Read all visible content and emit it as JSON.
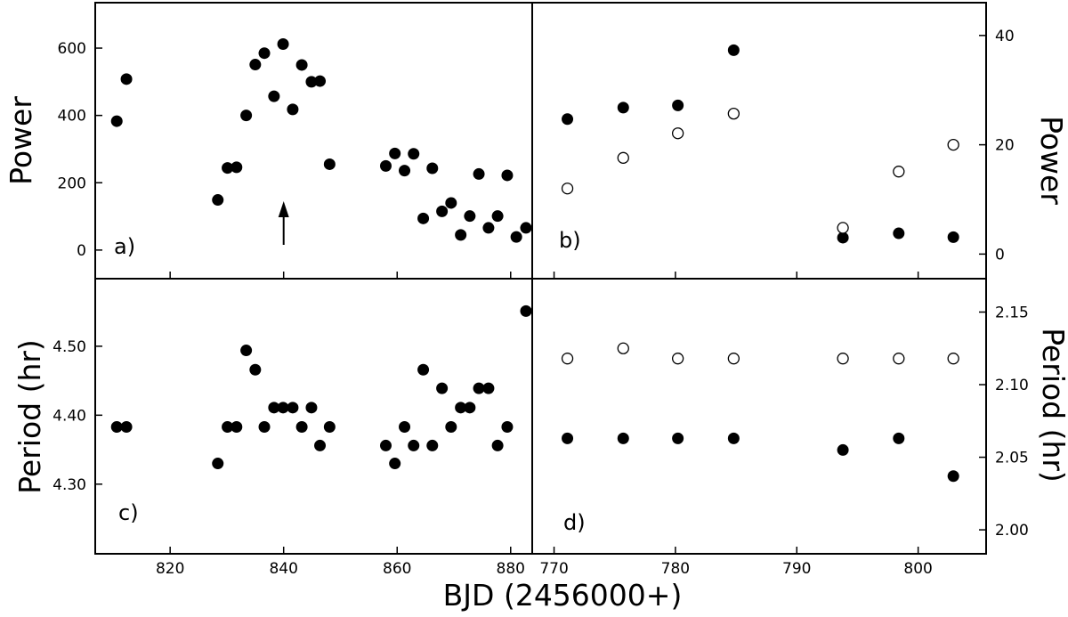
{
  "xlabel": "BJD (2456000+)",
  "chart_data": [
    {
      "panel": "a)",
      "type": "scatter",
      "ylabel": "Power",
      "xlim": [
        806.8,
        883.8
      ],
      "ylim": [
        -85,
        735
      ],
      "xticks": [
        820,
        840,
        860,
        880
      ],
      "yticks": [
        0,
        200,
        400,
        600
      ],
      "arrow_at_x": 840,
      "series": [
        {
          "fill": "filled",
          "points": [
            [
              810.6,
              383
            ],
            [
              812.3,
              508
            ],
            [
              828.4,
              149
            ],
            [
              830.1,
              244
            ],
            [
              831.7,
              246
            ],
            [
              833.4,
              400
            ],
            [
              835.0,
              551
            ],
            [
              836.6,
              585
            ],
            [
              838.3,
              457
            ],
            [
              839.9,
              612
            ],
            [
              841.6,
              418
            ],
            [
              843.2,
              550
            ],
            [
              844.9,
              500
            ],
            [
              846.4,
              502
            ],
            [
              848.1,
              255
            ],
            [
              858.0,
              250
            ],
            [
              859.6,
              287
            ],
            [
              861.3,
              236
            ],
            [
              862.9,
              286
            ],
            [
              864.6,
              94
            ],
            [
              866.2,
              243
            ],
            [
              867.9,
              115
            ],
            [
              869.5,
              140
            ],
            [
              871.2,
              45
            ],
            [
              872.8,
              101
            ],
            [
              874.4,
              226
            ],
            [
              876.1,
              66
            ],
            [
              877.7,
              101
            ],
            [
              879.4,
              222
            ],
            [
              881.0,
              39
            ],
            [
              882.7,
              66
            ]
          ]
        }
      ]
    },
    {
      "panel": "b)",
      "type": "scatter",
      "ylabel": "Power",
      "xlim": [
        768.2,
        805.6
      ],
      "ylim": [
        -4.5,
        46
      ],
      "xticks": [
        770,
        780,
        790,
        800
      ],
      "yticks": [
        0,
        20,
        40
      ],
      "series": [
        {
          "fill": "filled",
          "points": [
            [
              771.1,
              24.7
            ],
            [
              775.7,
              26.8
            ],
            [
              780.2,
              27.2
            ],
            [
              784.8,
              37.3
            ],
            [
              793.8,
              3.0
            ],
            [
              798.4,
              3.8
            ],
            [
              802.9,
              3.1
            ]
          ]
        },
        {
          "fill": "open",
          "points": [
            [
              771.1,
              12.0
            ],
            [
              775.7,
              17.6
            ],
            [
              780.2,
              22.1
            ],
            [
              784.8,
              25.7
            ],
            [
              793.8,
              4.8
            ],
            [
              798.4,
              15.1
            ],
            [
              802.9,
              20.0
            ]
          ]
        }
      ]
    },
    {
      "panel": "c)",
      "type": "scatter",
      "ylabel": "Period (hr)",
      "xlim": [
        806.8,
        883.8
      ],
      "ylim": [
        4.199,
        4.598
      ],
      "xticks": [
        820,
        840,
        860,
        880
      ],
      "yticks": [
        4.3,
        4.4,
        4.5
      ],
      "ytick_labels": [
        "4.30",
        "4.40",
        "4.50"
      ],
      "series": [
        {
          "fill": "filled",
          "points": [
            [
              810.6,
              4.383
            ],
            [
              812.3,
              4.383
            ],
            [
              828.4,
              4.33
            ],
            [
              830.1,
              4.383
            ],
            [
              831.7,
              4.383
            ],
            [
              833.4,
              4.494
            ],
            [
              835.0,
              4.466
            ],
            [
              836.6,
              4.383
            ],
            [
              838.3,
              4.411
            ],
            [
              839.9,
              4.411
            ],
            [
              841.6,
              4.411
            ],
            [
              843.2,
              4.383
            ],
            [
              844.9,
              4.411
            ],
            [
              846.4,
              4.356
            ],
            [
              848.1,
              4.383
            ],
            [
              858.0,
              4.356
            ],
            [
              859.6,
              4.33
            ],
            [
              861.3,
              4.383
            ],
            [
              862.9,
              4.356
            ],
            [
              864.6,
              4.466
            ],
            [
              866.2,
              4.356
            ],
            [
              867.9,
              4.439
            ],
            [
              869.5,
              4.383
            ],
            [
              871.2,
              4.411
            ],
            [
              872.8,
              4.411
            ],
            [
              874.4,
              4.439
            ],
            [
              876.1,
              4.439
            ],
            [
              877.7,
              4.356
            ],
            [
              879.4,
              4.383
            ],
            [
              882.7,
              4.551
            ]
          ]
        }
      ]
    },
    {
      "panel": "d)",
      "type": "scatter",
      "ylabel": "Period (hr)",
      "xlim": [
        768.2,
        805.6
      ],
      "ylim": [
        1.9835,
        2.173
      ],
      "xticks": [
        770,
        780,
        790,
        800
      ],
      "yticks": [
        2.0,
        2.05,
        2.1,
        2.15
      ],
      "ytick_labels": [
        "2.00",
        "2.05",
        "2.10",
        "2.15"
      ],
      "series": [
        {
          "fill": "open",
          "points": [
            [
              771.1,
              2.118
            ],
            [
              775.7,
              2.125
            ],
            [
              780.2,
              2.118
            ],
            [
              784.8,
              2.118
            ],
            [
              793.8,
              2.118
            ],
            [
              798.4,
              2.118
            ],
            [
              802.9,
              2.118
            ]
          ]
        },
        {
          "fill": "filled",
          "points": [
            [
              771.1,
              2.063
            ],
            [
              775.7,
              2.063
            ],
            [
              780.2,
              2.063
            ],
            [
              784.8,
              2.063
            ],
            [
              793.8,
              2.055
            ],
            [
              798.4,
              2.063
            ],
            [
              802.9,
              2.037
            ]
          ]
        }
      ]
    }
  ]
}
